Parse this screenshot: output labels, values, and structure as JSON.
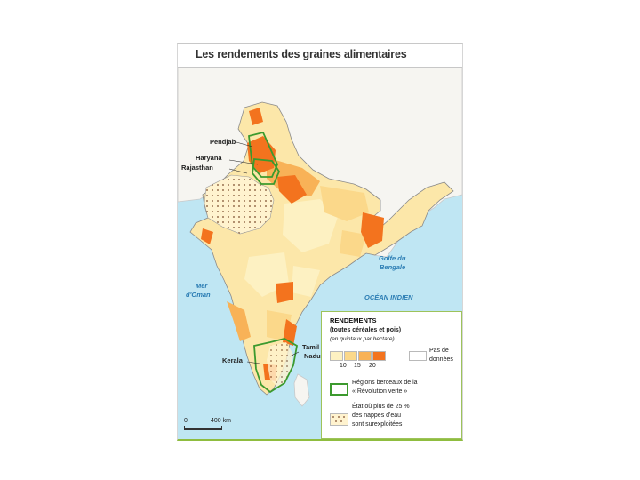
{
  "title": "Les rendements des graines alimentaires",
  "regions": {
    "pendjab": "Pendjab",
    "haryana": "Haryana",
    "rajasthan": "Rajasthan",
    "kerala": "Kerala",
    "tamil_nadu_1": "Tamil",
    "tamil_nadu_2": "Nadu"
  },
  "seas": {
    "mer_oman_1": "Mer",
    "mer_oman_2": "d'Oman",
    "golfe_bengale_1": "Golfe du",
    "golfe_bengale_2": "Bengale",
    "ocean_indien": "OCÉAN INDIEN"
  },
  "legend": {
    "title": "RENDEMENTS",
    "subtitle": "(toutes céréales et pois)",
    "unit": "(en quintaux par hectare)",
    "ticks": [
      "10",
      "15",
      "20"
    ],
    "no_data_1": "Pas de",
    "no_data_2": "données",
    "green_rev_1": "Régions berceaux de la",
    "green_rev_2": "« Révolution verte »",
    "water_1": "État où plus de 25 %",
    "water_2": "des nappes d'eau",
    "water_3": "sont surexploitées",
    "colors": [
      "#fdf1c2",
      "#fbd88a",
      "#f8b257",
      "#f3731e",
      "#ffffff"
    ]
  },
  "scale": {
    "zero": "0",
    "label": "400 km"
  }
}
